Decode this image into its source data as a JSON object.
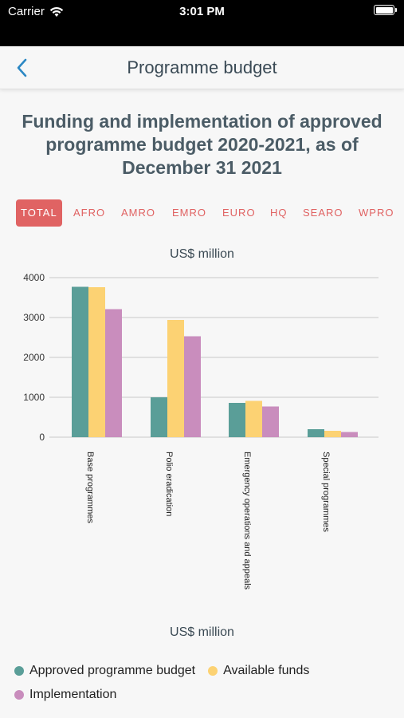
{
  "status_bar": {
    "carrier": "Carrier",
    "time": "3:01 PM"
  },
  "nav": {
    "title": "Programme budget"
  },
  "main": {
    "title": "Funding and implementation of approved programme budget 2020-2021, as of December 31 2021"
  },
  "tabs": [
    {
      "label": "TOTAL",
      "active": true
    },
    {
      "label": "AFRO"
    },
    {
      "label": "AMRO"
    },
    {
      "label": "EMRO"
    },
    {
      "label": "EURO"
    },
    {
      "label": "HQ"
    },
    {
      "label": "SEARO"
    },
    {
      "label": "WPRO"
    }
  ],
  "chart_data": {
    "type": "bar",
    "title": "",
    "ylabel": "US$ million",
    "xlabel": "US$ million",
    "ylim": [
      0,
      4000
    ],
    "yticks": [
      0,
      1000,
      2000,
      3000,
      4000
    ],
    "grid": true,
    "categories": [
      "Base programmes",
      "Polio eradication",
      "Emergency operations and appeals",
      "Special programmes"
    ],
    "series": [
      {
        "name": "Approved programme budget",
        "color": "#5a9e98",
        "values": [
          3770,
          1000,
          860,
          200
        ]
      },
      {
        "name": "Available funds",
        "color": "#fcd273",
        "values": [
          3760,
          2940,
          910,
          160
        ]
      },
      {
        "name": "Implementation",
        "color": "#c98dbd",
        "values": [
          3210,
          2530,
          770,
          130
        ]
      }
    ],
    "legend_position": "bottom"
  },
  "colors": {
    "accent": "#e06363",
    "status_bar": "#000000"
  }
}
